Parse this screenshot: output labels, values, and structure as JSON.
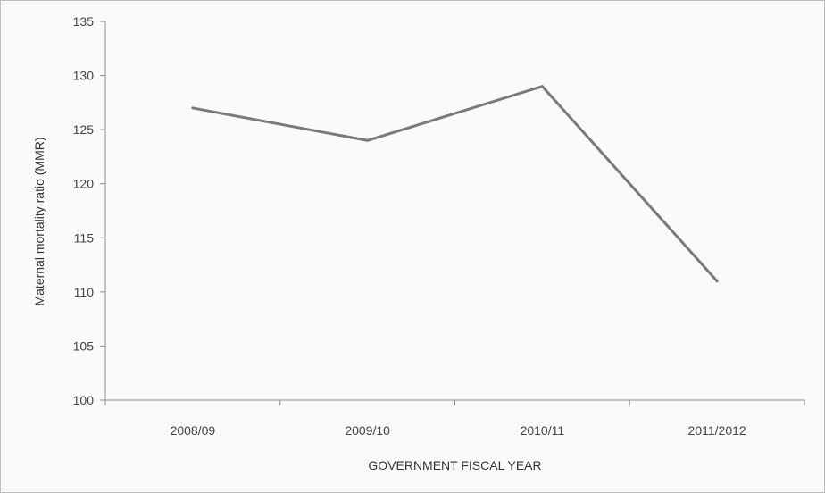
{
  "chart_data": {
    "type": "line",
    "title": "",
    "xlabel": "GOVERNMENT FISCAL YEAR",
    "ylabel": "Maternal mortality ratio (MMR)",
    "categories": [
      "2008/09",
      "2009/10",
      "2010/11",
      "2011/2012"
    ],
    "series": [
      {
        "values": [
          127,
          124,
          129,
          111
        ]
      }
    ],
    "ylim": [
      100,
      135
    ],
    "yticks": [
      {
        "value": 100,
        "label": "100"
      },
      {
        "value": 105,
        "label": "105"
      },
      {
        "value": 110,
        "label": "110"
      },
      {
        "value": 115,
        "label": "115"
      },
      {
        "value": 120,
        "label": "120"
      },
      {
        "value": 125,
        "label": "125"
      },
      {
        "value": 130,
        "label": "130"
      },
      {
        "value": 135,
        "label": "135"
      }
    ],
    "grid": false,
    "legend": "none",
    "colors": {
      "line": "#7a7a7a",
      "axis": "#8c8c8c",
      "text": "#444444"
    }
  }
}
